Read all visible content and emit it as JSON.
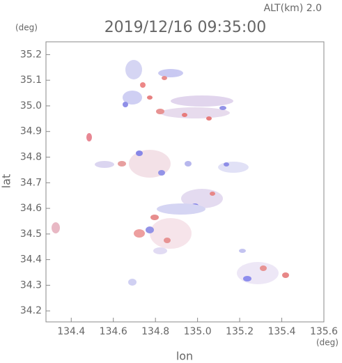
{
  "chart_data": {
    "type": "map",
    "title": "2019/12/16 09:35:00",
    "subtitle": "ALT(km) 2.0",
    "x_label": "lon",
    "y_label": "lat",
    "x_unit": "(deg)",
    "y_unit": "(deg)",
    "xlim": [
      134.28,
      135.6
    ],
    "ylim": [
      34.157,
      35.25
    ],
    "xticks": [
      134.4,
      134.6,
      134.8,
      {
        "value": 135,
        "label": "135.0"
      },
      135.2,
      135.4,
      135.6
    ],
    "yticks": [
      34.2,
      34.3,
      34.4,
      34.5,
      34.6,
      34.7,
      34.8,
      34.9,
      {
        "value": 35,
        "label": "35.0"
      },
      35.1,
      35.2
    ]
  }
}
